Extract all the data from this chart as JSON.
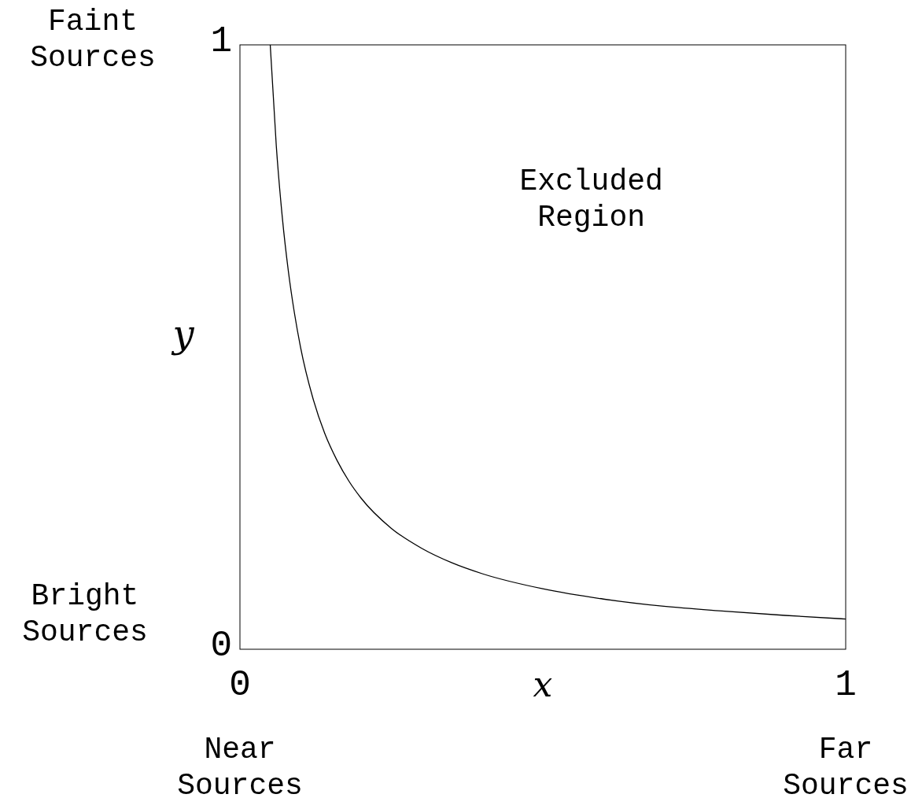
{
  "chart_data": {
    "type": "line",
    "xlabel": "x",
    "ylabel": "y",
    "x": [
      0.05,
      0.06,
      0.07,
      0.08,
      0.09,
      0.1,
      0.12,
      0.14,
      0.16,
      0.18,
      0.2,
      0.25,
      0.3,
      0.35,
      0.4,
      0.5,
      0.6,
      0.7,
      0.8,
      0.9,
      1.0
    ],
    "series": [
      {
        "color": "#000000",
        "values": [
          1.0,
          0.833,
          0.714,
          0.625,
          0.556,
          0.5,
          0.417,
          0.357,
          0.313,
          0.278,
          0.25,
          0.2,
          0.167,
          0.143,
          0.125,
          0.1,
          0.083,
          0.071,
          0.063,
          0.056,
          0.05
        ]
      }
    ],
    "xlim": [
      0,
      1
    ],
    "ylim": [
      0,
      1
    ],
    "xticks": [
      0,
      1
    ],
    "yticks": [
      0,
      1
    ],
    "grid": false,
    "marker": "none",
    "line_style": "solid",
    "annotations": [
      "Excluded\nRegion",
      "Faint\nSources",
      "Bright\nSources",
      "Near\nSources",
      "Far\nSources"
    ]
  }
}
